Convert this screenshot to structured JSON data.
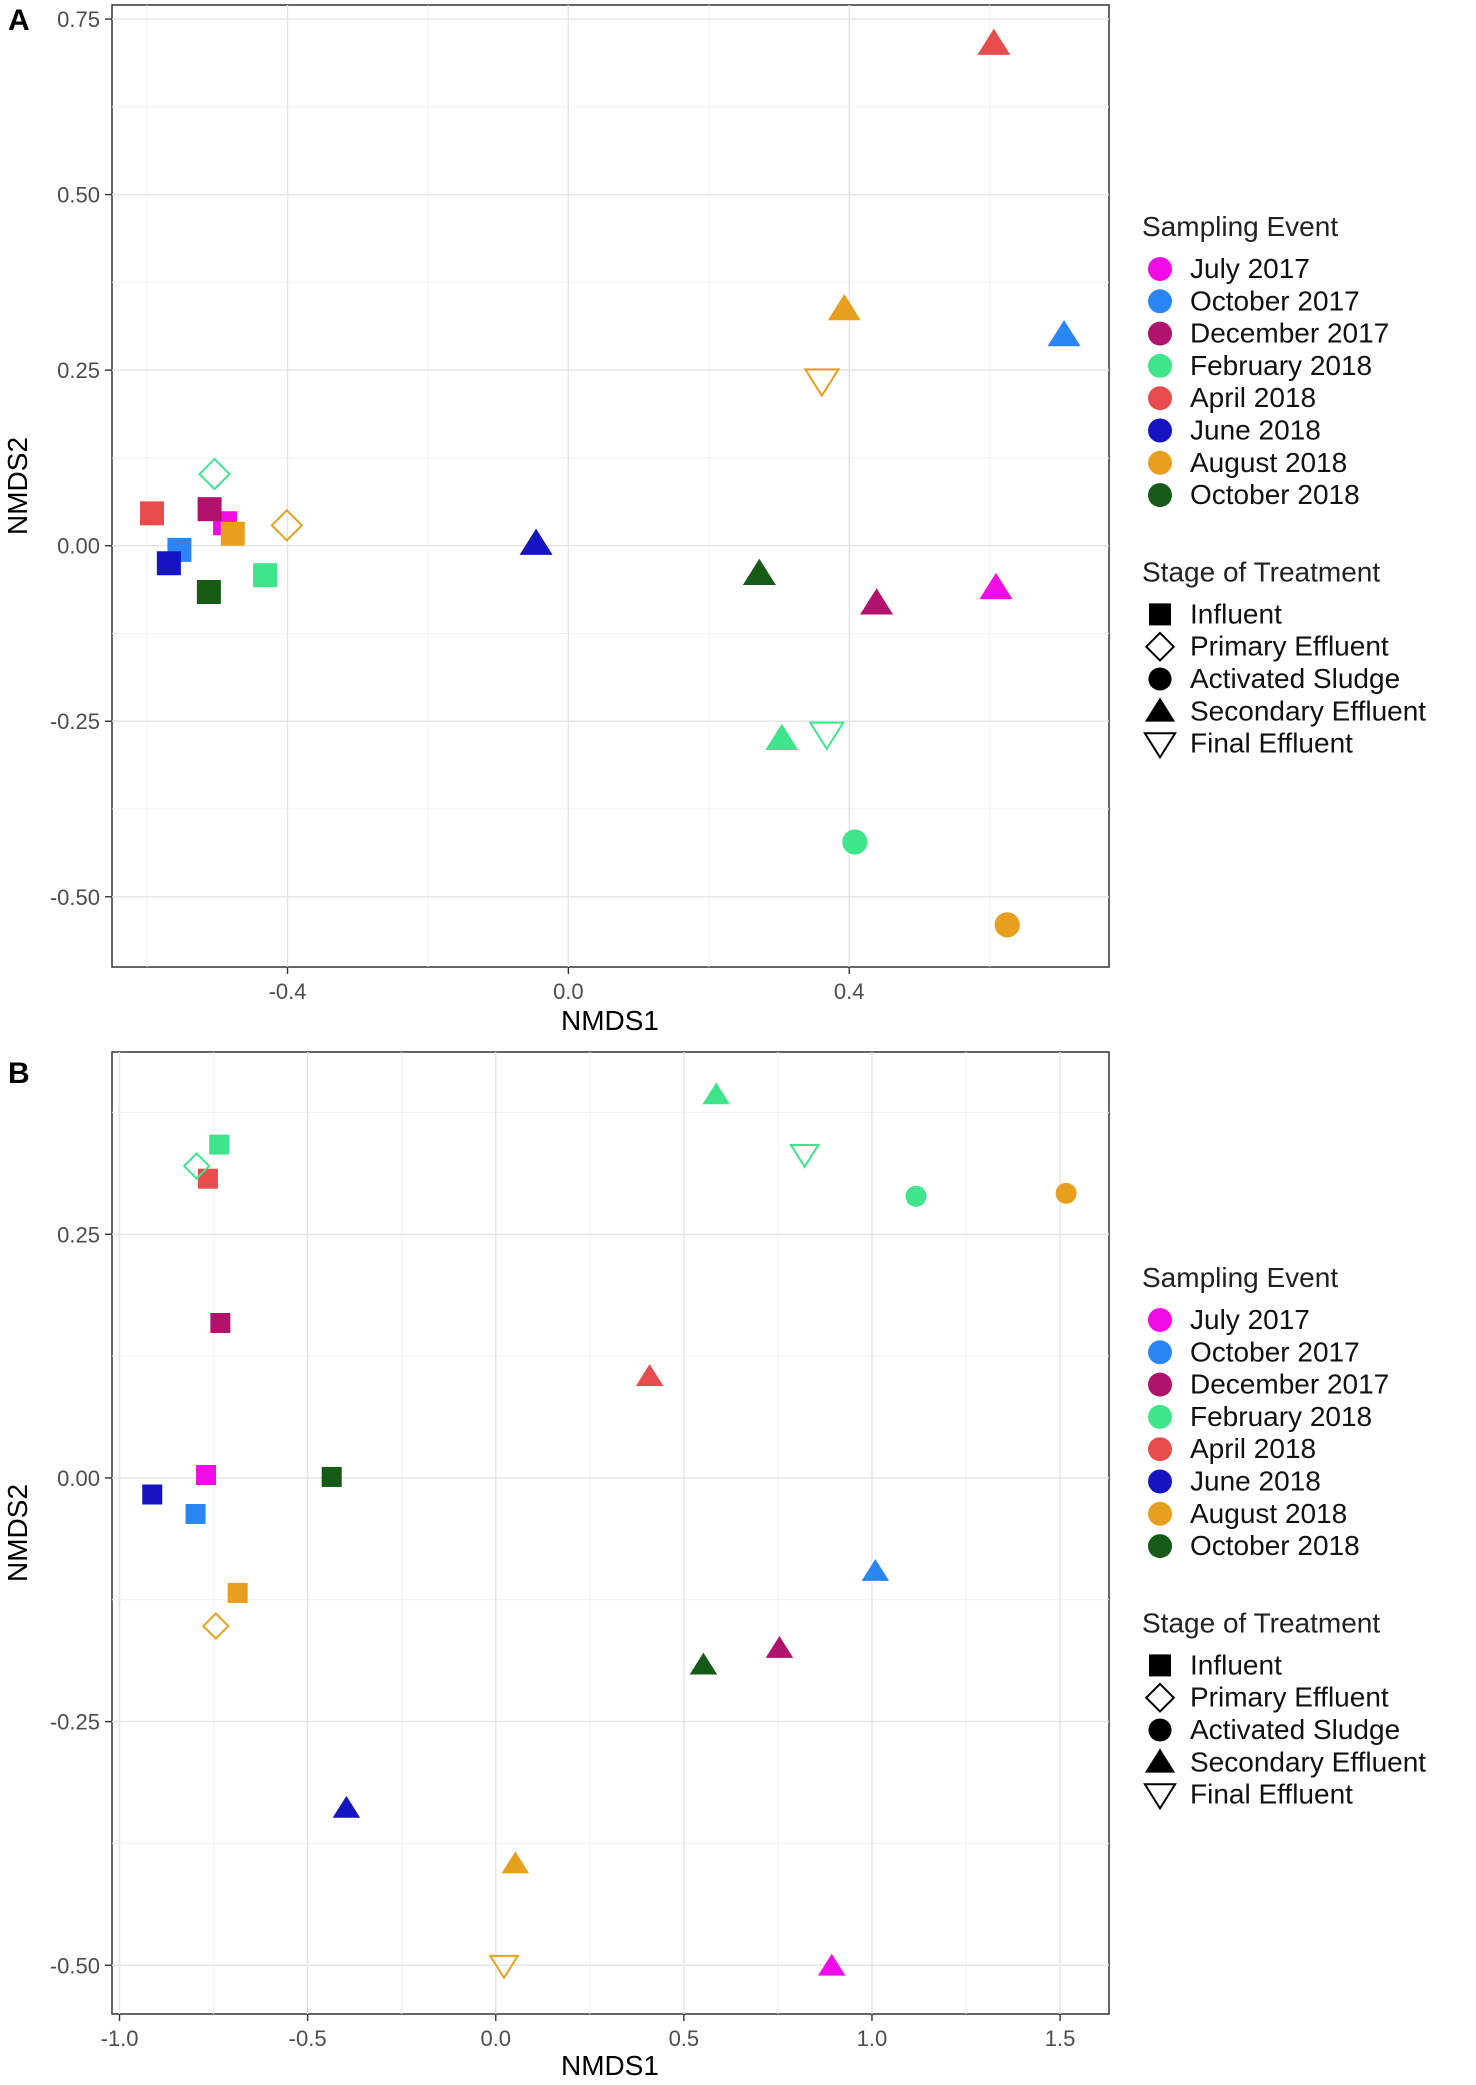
{
  "chart_data": [
    {
      "type": "scatter",
      "panel_label": "A",
      "xlabel": "NMDS1",
      "ylabel": "NMDS2",
      "xlim": [
        -0.65,
        0.77
      ],
      "ylim": [
        -0.6,
        0.77
      ],
      "xticks": [
        -0.4,
        0.0,
        0.4
      ],
      "xtick_labels": [
        "-0.4",
        "0.0",
        "0.4"
      ],
      "yticks": [
        -0.5,
        -0.25,
        0.0,
        0.25,
        0.5,
        0.75
      ],
      "ytick_labels": [
        "-0.50",
        "-0.25",
        "0.00",
        "0.25",
        "0.50",
        "0.75"
      ],
      "grid": true,
      "points": [
        {
          "event": "April 2018",
          "stage": "Influent",
          "x": -0.593,
          "y": 0.046
        },
        {
          "event": "July 2017",
          "stage": "Influent",
          "x": -0.489,
          "y": 0.032
        },
        {
          "event": "December 2017",
          "stage": "Influent",
          "x": -0.511,
          "y": 0.052
        },
        {
          "event": "August 2018",
          "stage": "Influent",
          "x": -0.478,
          "y": 0.017
        },
        {
          "event": "October 2017",
          "stage": "Influent",
          "x": -0.554,
          "y": -0.006
        },
        {
          "event": "June 2018",
          "stage": "Influent",
          "x": -0.569,
          "y": -0.025
        },
        {
          "event": "October 2018",
          "stage": "Influent",
          "x": -0.512,
          "y": -0.066
        },
        {
          "event": "February 2018",
          "stage": "Influent",
          "x": -0.432,
          "y": -0.042
        },
        {
          "event": "February 2018",
          "stage": "Primary Effluent",
          "x": -0.504,
          "y": 0.102
        },
        {
          "event": "August 2018",
          "stage": "Primary Effluent",
          "x": -0.401,
          "y": 0.029
        },
        {
          "event": "June 2018",
          "stage": "Secondary Effluent",
          "x": -0.046,
          "y": 0.003
        },
        {
          "event": "October 2018",
          "stage": "Secondary Effluent",
          "x": 0.272,
          "y": -0.04
        },
        {
          "event": "December 2017",
          "stage": "Secondary Effluent",
          "x": 0.439,
          "y": -0.082
        },
        {
          "event": "July 2017",
          "stage": "Secondary Effluent",
          "x": 0.609,
          "y": -0.06
        },
        {
          "event": "April 2018",
          "stage": "Secondary Effluent",
          "x": 0.606,
          "y": 0.715
        },
        {
          "event": "October 2017",
          "stage": "Secondary Effluent",
          "x": 0.706,
          "y": 0.3
        },
        {
          "event": "August 2018",
          "stage": "Secondary Effluent",
          "x": 0.393,
          "y": 0.337
        },
        {
          "event": "February 2018",
          "stage": "Secondary Effluent",
          "x": 0.304,
          "y": -0.275
        },
        {
          "event": "August 2018",
          "stage": "Final Effluent",
          "x": 0.361,
          "y": 0.235
        },
        {
          "event": "February 2018",
          "stage": "Final Effluent",
          "x": 0.368,
          "y": -0.268
        },
        {
          "event": "February 2018",
          "stage": "Activated Sludge",
          "x": 0.408,
          "y": -0.422
        },
        {
          "event": "August 2018",
          "stage": "Activated Sludge",
          "x": 0.625,
          "y": -0.54
        }
      ]
    },
    {
      "type": "scatter",
      "panel_label": "B",
      "xlabel": "NMDS1",
      "ylabel": "NMDS2",
      "xlim": [
        -1.02,
        1.63
      ],
      "ylim": [
        -0.55,
        0.437
      ],
      "xticks": [
        -1.0,
        -0.5,
        0.0,
        0.5,
        1.0,
        1.5
      ],
      "xtick_labels": [
        "-1.0",
        "-0.5",
        "0.0",
        "0.5",
        "1.0",
        "1.5"
      ],
      "yticks": [
        -0.5,
        -0.25,
        0.0,
        0.25
      ],
      "ytick_labels": [
        "-0.50",
        "-0.25",
        "0.00",
        "0.25"
      ],
      "grid": true,
      "points": [
        {
          "event": "February 2018",
          "stage": "Influent",
          "x": -0.735,
          "y": 0.342
        },
        {
          "event": "April 2018",
          "stage": "Influent",
          "x": -0.765,
          "y": 0.307
        },
        {
          "event": "December 2017",
          "stage": "Influent",
          "x": -0.732,
          "y": 0.159
        },
        {
          "event": "July 2017",
          "stage": "Influent",
          "x": -0.77,
          "y": 0.003
        },
        {
          "event": "October 2018",
          "stage": "Influent",
          "x": -0.436,
          "y": 0.001
        },
        {
          "event": "June 2018",
          "stage": "Influent",
          "x": -0.913,
          "y": -0.017
        },
        {
          "event": "October 2017",
          "stage": "Influent",
          "x": -0.798,
          "y": -0.037
        },
        {
          "event": "August 2018",
          "stage": "Influent",
          "x": -0.686,
          "y": -0.118
        },
        {
          "event": "February 2018",
          "stage": "Primary Effluent",
          "x": -0.795,
          "y": 0.32
        },
        {
          "event": "August 2018",
          "stage": "Primary Effluent",
          "x": -0.744,
          "y": -0.152
        },
        {
          "event": "February 2018",
          "stage": "Secondary Effluent",
          "x": 0.586,
          "y": 0.393
        },
        {
          "event": "April 2018",
          "stage": "Secondary Effluent",
          "x": 0.409,
          "y": 0.104
        },
        {
          "event": "October 2017",
          "stage": "Secondary Effluent",
          "x": 1.009,
          "y": -0.096
        },
        {
          "event": "December 2017",
          "stage": "Secondary Effluent",
          "x": 0.754,
          "y": -0.175
        },
        {
          "event": "October 2018",
          "stage": "Secondary Effluent",
          "x": 0.552,
          "y": -0.192
        },
        {
          "event": "June 2018",
          "stage": "Secondary Effluent",
          "x": -0.397,
          "y": -0.339
        },
        {
          "event": "August 2018",
          "stage": "Secondary Effluent",
          "x": 0.052,
          "y": -0.396
        },
        {
          "event": "July 2017",
          "stage": "Secondary Effluent",
          "x": 0.893,
          "y": -0.501
        },
        {
          "event": "February 2018",
          "stage": "Final Effluent",
          "x": 0.821,
          "y": 0.332
        },
        {
          "event": "August 2018",
          "stage": "Final Effluent",
          "x": 0.022,
          "y": -0.5
        },
        {
          "event": "February 2018",
          "stage": "Activated Sludge",
          "x": 1.117,
          "y": 0.289
        },
        {
          "event": "August 2018",
          "stage": "Activated Sludge",
          "x": 1.516,
          "y": 0.292
        }
      ]
    }
  ],
  "legend": {
    "sampling_title": "Sampling Event",
    "stage_title": "Stage of Treatment",
    "events": [
      {
        "label": "July 2017",
        "color": "#F20BE6"
      },
      {
        "label": "October 2017",
        "color": "#2A86F5"
      },
      {
        "label": "December 2017",
        "color": "#B0126C"
      },
      {
        "label": "February 2018",
        "color": "#3FE58A"
      },
      {
        "label": "April 2018",
        "color": "#E84C4C"
      },
      {
        "label": "June 2018",
        "color": "#1414C2"
      },
      {
        "label": "August 2018",
        "color": "#E6A01E"
      },
      {
        "label": "October 2018",
        "color": "#155A15"
      }
    ],
    "stages": [
      {
        "label": "Influent",
        "shape": "square"
      },
      {
        "label": "Primary Effluent",
        "shape": "diamond-open"
      },
      {
        "label": "Activated Sludge",
        "shape": "circle"
      },
      {
        "label": "Secondary Effluent",
        "shape": "triangle"
      },
      {
        "label": "Final Effluent",
        "shape": "triangle-down-open"
      }
    ]
  }
}
